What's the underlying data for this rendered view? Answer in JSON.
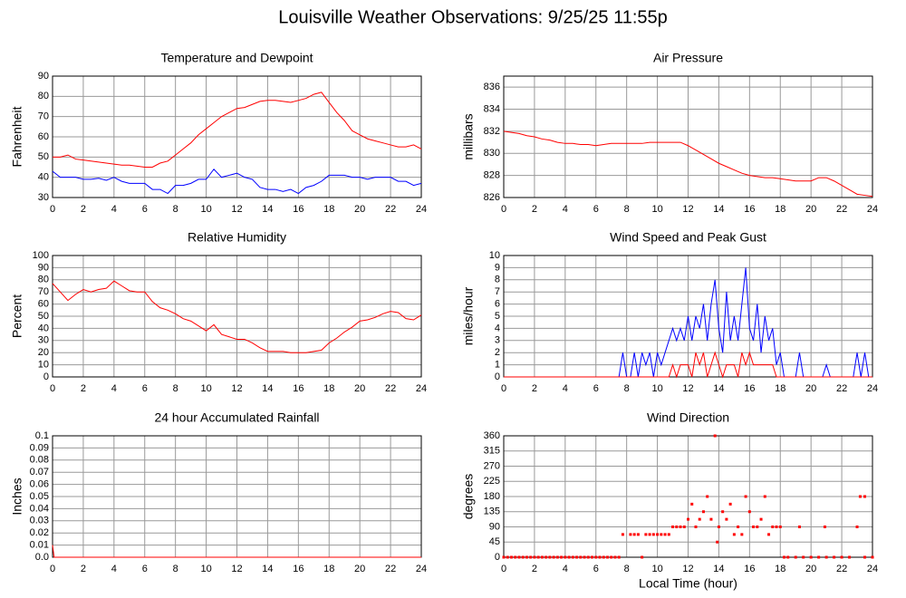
{
  "title": "Louisville Weather Observations: 9/25/25 11:55p",
  "chart_data": [
    {
      "type": "line",
      "title": "Temperature and Dewpoint",
      "ylabel": "Fahrenheit",
      "grid": true,
      "xlim": [
        0,
        24
      ],
      "xticks": [
        0,
        2,
        4,
        6,
        8,
        10,
        12,
        14,
        16,
        18,
        20,
        22,
        24
      ],
      "ylim": [
        30,
        90
      ],
      "yticks": [
        30,
        40,
        50,
        60,
        70,
        80,
        90
      ],
      "x": [
        0,
        0.5,
        1,
        1.5,
        2,
        2.5,
        3,
        3.5,
        4,
        4.5,
        5,
        5.5,
        6,
        6.5,
        7,
        7.5,
        8,
        8.5,
        9,
        9.5,
        10,
        10.5,
        11,
        11.5,
        12,
        12.5,
        13,
        13.5,
        14,
        14.5,
        15,
        15.5,
        16,
        16.5,
        17,
        17.5,
        18,
        18.5,
        19,
        19.5,
        20,
        20.5,
        21,
        21.5,
        22,
        22.5,
        23,
        23.5,
        24
      ],
      "series": [
        {
          "color": "#ff0000",
          "values": [
            50,
            50,
            51,
            49,
            48.5,
            48,
            47.5,
            47,
            46.5,
            46,
            46,
            45.5,
            45,
            45,
            47,
            48,
            51,
            54,
            57,
            61,
            64,
            67,
            70,
            72,
            74,
            74.5,
            76,
            77.5,
            78,
            78,
            77.5,
            77,
            78,
            79,
            81,
            82,
            77,
            72,
            68,
            63,
            61,
            59,
            58,
            57,
            56,
            55,
            55,
            56,
            54
          ]
        },
        {
          "color": "#0000ff",
          "values": [
            43,
            40,
            40,
            40,
            39,
            39,
            39.5,
            38.5,
            40,
            38,
            37,
            37,
            37,
            34,
            34,
            32,
            36,
            36,
            37,
            39,
            39,
            44,
            40,
            41,
            42,
            40,
            39,
            35,
            34,
            34,
            33,
            34,
            32,
            35,
            36,
            38,
            41,
            41,
            41,
            40,
            40,
            39,
            40,
            40,
            40,
            38,
            38,
            36,
            37
          ]
        }
      ]
    },
    {
      "type": "line",
      "title": "Air Pressure",
      "ylabel": "millibars",
      "grid": true,
      "xlim": [
        0,
        24
      ],
      "xticks": [
        0,
        2,
        4,
        6,
        8,
        10,
        12,
        14,
        16,
        18,
        20,
        22,
        24
      ],
      "ylim": [
        826,
        837
      ],
      "yticks": [
        826,
        828,
        830,
        832,
        834,
        836
      ],
      "x": [
        0,
        0.5,
        1,
        1.5,
        2,
        2.5,
        3,
        3.5,
        4,
        4.5,
        5,
        5.5,
        6,
        6.5,
        7,
        7.5,
        8,
        8.5,
        9,
        9.5,
        10,
        10.5,
        11,
        11.5,
        12,
        12.5,
        13,
        13.5,
        14,
        14.5,
        15,
        15.5,
        16,
        16.5,
        17,
        17.5,
        18,
        18.5,
        19,
        19.5,
        20,
        20.5,
        21,
        21.5,
        22,
        22.5,
        23,
        23.5,
        24
      ],
      "series": [
        {
          "color": "#ff0000",
          "values": [
            832,
            831.9,
            831.8,
            831.6,
            831.5,
            831.3,
            831.2,
            831,
            830.9,
            830.9,
            830.8,
            830.8,
            830.7,
            830.8,
            830.9,
            830.9,
            830.9,
            830.9,
            830.9,
            831,
            831,
            831,
            831,
            831,
            830.7,
            830.3,
            829.9,
            829.5,
            829.1,
            828.8,
            828.5,
            828.2,
            828,
            827.9,
            827.8,
            827.8,
            827.7,
            827.6,
            827.5,
            827.5,
            827.5,
            827.8,
            827.8,
            827.5,
            827.1,
            826.7,
            826.3,
            826.2,
            826.1
          ]
        }
      ]
    },
    {
      "type": "line",
      "title": "Relative Humidity",
      "ylabel": "Percent",
      "grid": true,
      "xlim": [
        0,
        24
      ],
      "xticks": [
        0,
        2,
        4,
        6,
        8,
        10,
        12,
        14,
        16,
        18,
        20,
        22,
        24
      ],
      "ylim": [
        0,
        100
      ],
      "yticks": [
        0,
        10,
        20,
        30,
        40,
        50,
        60,
        70,
        80,
        90,
        100
      ],
      "x": [
        0,
        0.5,
        1,
        1.5,
        2,
        2.5,
        3,
        3.5,
        4,
        4.5,
        5,
        5.5,
        6,
        6.5,
        7,
        7.5,
        8,
        8.5,
        9,
        9.5,
        10,
        10.5,
        11,
        11.5,
        12,
        12.5,
        13,
        13.5,
        14,
        14.5,
        15,
        15.5,
        16,
        16.5,
        17,
        17.5,
        18,
        18.5,
        19,
        19.5,
        20,
        20.5,
        21,
        21.5,
        22,
        22.5,
        23,
        23.5,
        24
      ],
      "series": [
        {
          "color": "#ff0000",
          "values": [
            77,
            70,
            63,
            68,
            72,
            70,
            72,
            73,
            79,
            75,
            71,
            70,
            70,
            62,
            57,
            55,
            52,
            48,
            46,
            42,
            38,
            43,
            35,
            33,
            31,
            31,
            28,
            24,
            21,
            21,
            21,
            20,
            20,
            20,
            21,
            22,
            28,
            32,
            37,
            41,
            46,
            47,
            49,
            52,
            54,
            53,
            48,
            47,
            51
          ]
        }
      ]
    },
    {
      "type": "line",
      "title": "Wind Speed and Peak Gust",
      "ylabel": "miles/hour",
      "grid": true,
      "xlim": [
        0,
        24
      ],
      "xticks": [
        0,
        2,
        4,
        6,
        8,
        10,
        12,
        14,
        16,
        18,
        20,
        22,
        24
      ],
      "ylim": [
        0,
        10
      ],
      "yticks": [
        0,
        1,
        2,
        3,
        4,
        5,
        6,
        7,
        8,
        9,
        10
      ],
      "x": [
        0,
        7.5,
        7.75,
        8,
        8.25,
        8.5,
        8.75,
        9,
        9.25,
        9.5,
        9.75,
        10,
        10.25,
        10.5,
        10.75,
        11,
        11.25,
        11.5,
        11.75,
        12,
        12.25,
        12.5,
        12.75,
        13,
        13.25,
        13.5,
        13.75,
        14,
        14.25,
        14.5,
        14.75,
        15,
        15.25,
        15.5,
        15.75,
        16,
        16.25,
        16.5,
        16.75,
        17,
        17.25,
        17.5,
        17.75,
        18,
        18.25,
        18.5,
        18.75,
        19,
        19.25,
        19.5,
        19.75,
        20,
        20.25,
        20.5,
        20.75,
        21,
        21.25,
        21.5,
        21.75,
        22,
        22.25,
        22.5,
        22.75,
        23,
        23.25,
        23.5,
        23.75,
        24
      ],
      "series": [
        {
          "color": "#0000ff",
          "values": [
            0,
            0,
            2,
            0,
            0,
            2,
            0,
            2,
            1,
            2,
            0,
            2,
            1,
            2,
            3,
            4,
            3,
            4,
            3,
            5,
            3,
            5,
            4,
            6,
            3,
            6,
            8,
            4,
            2,
            7,
            3,
            5,
            3,
            6,
            9,
            4,
            3,
            6,
            2,
            5,
            3,
            4,
            1,
            2,
            0,
            0,
            0,
            0,
            2,
            0,
            0,
            0,
            0,
            0,
            0,
            1,
            0,
            0,
            0,
            0,
            0,
            0,
            0,
            2,
            0,
            2,
            0,
            0
          ]
        },
        {
          "color": "#ff0000",
          "values": [
            0,
            0,
            0,
            0,
            0,
            0,
            0,
            0,
            0,
            0,
            0,
            0,
            0,
            0,
            0,
            1,
            0,
            1,
            1,
            1,
            0,
            2,
            1,
            2,
            0,
            1,
            2,
            1,
            0,
            1,
            1,
            1,
            0,
            2,
            1,
            2,
            1,
            1,
            1,
            1,
            1,
            1,
            0,
            0,
            0,
            0,
            0,
            0,
            0,
            0,
            0,
            0,
            0,
            0,
            0,
            0,
            0,
            0,
            0,
            0,
            0,
            0,
            0,
            0,
            0,
            0,
            0,
            0
          ]
        }
      ]
    },
    {
      "type": "line",
      "title": "24 hour Accumulated Rainfall",
      "ylabel": "Inches",
      "grid": true,
      "xlim": [
        0,
        24
      ],
      "xticks": [
        0,
        2,
        4,
        6,
        8,
        10,
        12,
        14,
        16,
        18,
        20,
        22,
        24
      ],
      "ylim": [
        0,
        0.1
      ],
      "yticks": [
        {
          "value": 0,
          "label": "0.0"
        },
        0.01,
        0.02,
        0.03,
        0.04,
        0.05,
        0.06,
        0.07,
        0.08,
        0.09,
        0.1
      ],
      "x": [
        0,
        0.1,
        24
      ],
      "series": [
        {
          "color": "#ff0000",
          "values": [
            0.01,
            0,
            0
          ]
        }
      ]
    },
    {
      "type": "scatter",
      "title": "Wind Direction",
      "ylabel": "degrees",
      "xlabel": "Local Time (hour)",
      "grid": true,
      "xlim": [
        0,
        24
      ],
      "xticks": [
        0,
        2,
        4,
        6,
        8,
        10,
        12,
        14,
        16,
        18,
        20,
        22,
        24
      ],
      "ylim": [
        0,
        360
      ],
      "yticks": [
        0,
        45,
        90,
        135,
        180,
        225,
        270,
        315,
        360
      ],
      "color": "#ff0000",
      "x": [
        0,
        0.25,
        0.5,
        0.75,
        1,
        1.25,
        1.5,
        1.75,
        2,
        2.25,
        2.5,
        2.75,
        3,
        3.25,
        3.5,
        3.75,
        4,
        4.25,
        4.5,
        4.75,
        5,
        5.25,
        5.5,
        5.75,
        6,
        6.25,
        6.5,
        6.75,
        7,
        7.25,
        7.5,
        9,
        18.25,
        18.5,
        19,
        19.5,
        20,
        20.5,
        21,
        21.5,
        22,
        22.5,
        23.5,
        24,
        7.75,
        8.25,
        8.5,
        8.75,
        9.25,
        9.5,
        9.75,
        10,
        10.25,
        10.5,
        10.75,
        11,
        11.25,
        11.5,
        11.75,
        12,
        12.25,
        12.5,
        12.75,
        13,
        13.25,
        13.5,
        13.75,
        13.9,
        14,
        14.25,
        14.5,
        14.75,
        15,
        15.25,
        15.5,
        15.75,
        16,
        16.25,
        16.5,
        16.75,
        17,
        17.25,
        17.5,
        17.75,
        18,
        19.25,
        20.9,
        23,
        23.2,
        23.5
      ],
      "values": [
        0,
        0,
        0,
        0,
        0,
        0,
        0,
        0,
        0,
        0,
        0,
        0,
        0,
        0,
        0,
        0,
        0,
        0,
        0,
        0,
        0,
        0,
        0,
        0,
        0,
        0,
        0,
        0,
        0,
        0,
        0,
        0,
        0,
        0,
        0,
        0,
        0,
        0,
        0,
        0,
        0,
        0,
        0,
        0,
        67.5,
        67.5,
        67.5,
        67.5,
        67.5,
        67.5,
        67.5,
        67.5,
        67.5,
        67.5,
        67.5,
        90,
        90,
        90,
        90,
        112.5,
        157.5,
        90,
        112.5,
        135,
        180,
        112.5,
        360,
        45,
        90,
        135,
        112.5,
        157.5,
        67.5,
        90,
        67.5,
        180,
        135,
        90,
        90,
        112.5,
        180,
        67.5,
        90,
        90,
        90,
        90,
        90,
        90,
        180,
        180
      ]
    }
  ]
}
